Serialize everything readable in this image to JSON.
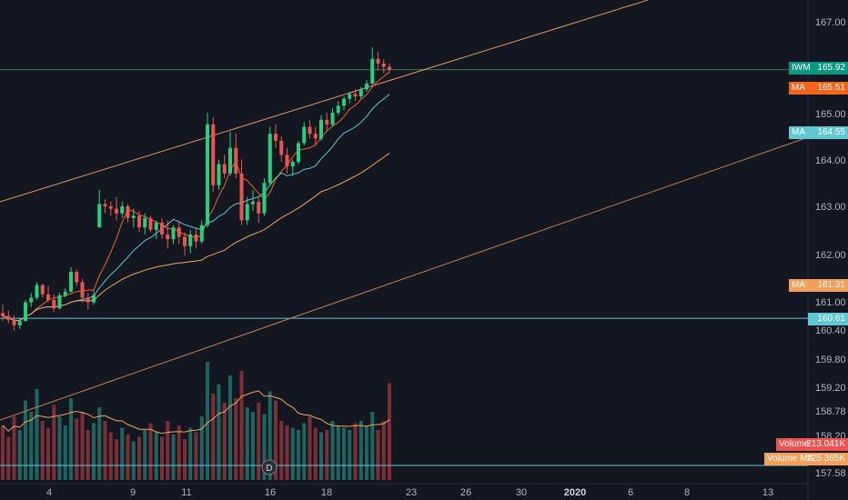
{
  "chart_data": {
    "type": "candlestick",
    "symbol": "IWM",
    "y_ticks": [
      "167.00",
      "166.00",
      "165.00",
      "164.00",
      "163.00",
      "162.00",
      "161.00",
      "160.40",
      "159.80",
      "159.20",
      "158.78",
      "158.20",
      "157.58"
    ],
    "x_ticks": [
      "4",
      "9",
      "11",
      "16",
      "18",
      "23",
      "26",
      "30",
      "2020",
      "6",
      "8",
      "13"
    ],
    "price_labels": [
      {
        "key": "IWM",
        "value": "165.92",
        "color": "#089981"
      },
      {
        "key": "MA",
        "value": "165.51",
        "color": "#f7631b"
      },
      {
        "key": "MA",
        "value": "164.55",
        "color": "#5ec8d3"
      },
      {
        "key": "MA",
        "value": "161.31",
        "color": "#f5a05a"
      },
      {
        "key": "",
        "value": "160.61",
        "color": "#5ec8d3"
      },
      {
        "key": "Volume",
        "value": "213.041K",
        "color": "#ef5350"
      },
      {
        "key": "Volume MA",
        "value": "125.365K",
        "color": "#f5a05a"
      }
    ],
    "ma_short_last": 165.51,
    "ma_mid_last": 164.55,
    "ma_long_last": 161.31,
    "last_close": 165.92,
    "horizontal_level": 160.61,
    "dividend_marker": "D",
    "candles": [
      [
        160.72,
        160.9,
        160.55,
        160.66
      ],
      [
        160.66,
        160.78,
        160.5,
        160.58
      ],
      [
        160.58,
        160.68,
        160.35,
        160.46
      ],
      [
        160.46,
        160.62,
        160.38,
        160.55
      ],
      [
        160.55,
        161.0,
        160.55,
        160.95
      ],
      [
        160.95,
        161.15,
        160.85,
        161.05
      ],
      [
        161.05,
        161.38,
        161.0,
        161.32
      ],
      [
        161.32,
        161.35,
        161.05,
        161.12
      ],
      [
        161.12,
        161.3,
        160.95,
        161.0
      ],
      [
        161.0,
        161.12,
        160.75,
        160.82
      ],
      [
        160.82,
        161.15,
        160.8,
        161.1
      ],
      [
        161.1,
        161.25,
        161.05,
        161.18
      ],
      [
        161.18,
        161.7,
        161.15,
        161.6
      ],
      [
        161.6,
        161.65,
        161.3,
        161.38
      ],
      [
        161.38,
        161.45,
        160.95,
        161.05
      ],
      [
        161.05,
        161.15,
        160.8,
        160.95
      ],
      [
        160.95,
        161.2,
        160.9,
        161.1
      ],
      [
        162.55,
        163.35,
        162.6,
        163.05
      ],
      [
        163.05,
        163.15,
        162.85,
        163.0
      ],
      [
        163.0,
        163.1,
        162.8,
        162.95
      ],
      [
        162.95,
        163.2,
        162.7,
        162.85
      ],
      [
        162.85,
        163.1,
        162.75,
        163.0
      ],
      [
        163.0,
        163.05,
        162.65,
        162.75
      ],
      [
        162.75,
        162.95,
        162.55,
        162.8
      ],
      [
        162.8,
        162.9,
        162.45,
        162.55
      ],
      [
        162.55,
        162.85,
        162.4,
        162.75
      ],
      [
        162.75,
        162.8,
        162.45,
        162.5
      ],
      [
        162.5,
        162.7,
        162.3,
        162.65
      ],
      [
        162.65,
        162.75,
        162.3,
        162.4
      ],
      [
        162.4,
        162.7,
        162.1,
        162.3
      ],
      [
        162.3,
        162.6,
        162.2,
        162.55
      ],
      [
        162.55,
        162.7,
        162.2,
        162.35
      ],
      [
        162.35,
        162.45,
        161.95,
        162.15
      ],
      [
        162.15,
        162.5,
        162.0,
        162.4
      ],
      [
        162.4,
        162.55,
        162.1,
        162.25
      ],
      [
        162.25,
        162.7,
        162.2,
        162.6
      ],
      [
        162.6,
        165.0,
        162.55,
        164.75
      ],
      [
        164.75,
        164.9,
        163.3,
        163.45
      ],
      [
        163.45,
        164.0,
        163.35,
        163.9
      ],
      [
        163.9,
        164.1,
        163.6,
        163.7
      ],
      [
        163.7,
        164.6,
        163.65,
        164.25
      ],
      [
        164.25,
        164.55,
        163.6,
        163.7
      ],
      [
        163.7,
        164.0,
        162.6,
        162.7
      ],
      [
        162.7,
        163.2,
        162.6,
        163.05
      ],
      [
        163.05,
        163.35,
        162.9,
        163.1
      ],
      [
        163.1,
        163.2,
        162.65,
        162.85
      ],
      [
        162.85,
        163.6,
        162.8,
        163.5
      ],
      [
        163.5,
        164.7,
        163.45,
        164.55
      ],
      [
        164.55,
        164.75,
        164.25,
        164.4
      ],
      [
        164.4,
        164.5,
        163.95,
        164.1
      ],
      [
        164.1,
        164.25,
        163.7,
        163.85
      ],
      [
        163.85,
        164.0,
        163.65,
        163.95
      ],
      [
        163.95,
        164.4,
        163.9,
        164.35
      ],
      [
        164.35,
        164.8,
        164.3,
        164.7
      ],
      [
        164.7,
        164.85,
        164.45,
        164.55
      ],
      [
        164.55,
        164.7,
        164.3,
        164.45
      ],
      [
        164.45,
        164.95,
        164.4,
        164.85
      ],
      [
        164.85,
        165.0,
        164.6,
        164.75
      ],
      [
        164.75,
        165.1,
        164.7,
        165.0
      ],
      [
        165.0,
        165.25,
        164.95,
        165.15
      ],
      [
        165.15,
        165.35,
        165.05,
        165.3
      ],
      [
        165.3,
        165.45,
        165.2,
        165.4
      ],
      [
        165.4,
        165.5,
        165.25,
        165.35
      ],
      [
        165.35,
        165.55,
        165.3,
        165.5
      ],
      [
        165.5,
        165.7,
        165.45,
        165.62
      ],
      [
        165.62,
        166.4,
        165.6,
        166.15
      ],
      [
        166.15,
        166.3,
        165.9,
        166.05
      ],
      [
        166.05,
        166.15,
        165.85,
        165.98
      ],
      [
        165.98,
        166.05,
        165.85,
        165.92
      ]
    ],
    "volume_k": [
      120,
      95,
      140,
      110,
      175,
      150,
      200,
      130,
      115,
      165,
      140,
      120,
      180,
      135,
      150,
      110,
      125,
      160,
      130,
      105,
      90,
      115,
      100,
      85,
      95,
      110,
      125,
      105,
      95,
      130,
      100,
      120,
      90,
      115,
      105,
      140,
      260,
      190,
      210,
      170,
      230,
      180,
      240,
      160,
      150,
      170,
      145,
      195,
      175,
      130,
      120,
      115,
      110,
      125,
      140,
      115,
      105,
      110,
      130,
      120,
      115,
      110,
      125,
      130,
      120,
      150,
      110,
      130,
      213
    ]
  }
}
